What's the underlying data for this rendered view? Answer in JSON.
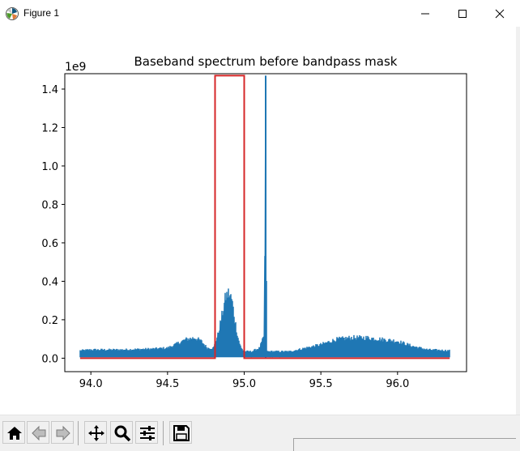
{
  "window": {
    "title": "Figure 1",
    "controls": [
      "minimize",
      "maximize",
      "close"
    ]
  },
  "colors": {
    "spectrum": "#1f77b4",
    "mask": "#d62728",
    "axes": "#000000",
    "toolbar_bg": "#f0f0f0"
  },
  "toolbar": {
    "buttons": [
      "home-icon",
      "back-arrow-icon",
      "forward-arrow-icon",
      "pan-icon",
      "zoom-icon",
      "configure-subplots-icon",
      "save-icon"
    ]
  },
  "chart_data": {
    "type": "line",
    "title": "Baseband spectrum before bandpass mask",
    "xlabel": "",
    "ylabel": "",
    "y_scale_label": "1e9",
    "xlim": [
      93.83,
      96.45
    ],
    "ylim": [
      -0.07,
      1.48
    ],
    "grid": false,
    "x_ticks": [
      94.0,
      94.5,
      95.0,
      95.5,
      96.0
    ],
    "x_tick_labels": [
      "94.0",
      "94.5",
      "95.0",
      "95.5",
      "96.0"
    ],
    "y_ticks": [
      0.0,
      0.2,
      0.4,
      0.6,
      0.8,
      1.0,
      1.2,
      1.4
    ],
    "y_tick_labels": [
      "0.0",
      "0.2",
      "0.4",
      "0.6",
      "0.8",
      "1.0",
      "1.2",
      "1.4"
    ],
    "series": [
      {
        "name": "",
        "color": "#1f77b4",
        "style": "noisy_spectrum",
        "x": [
          93.93,
          94.0,
          94.2,
          94.4,
          94.5,
          94.55,
          94.62,
          94.68,
          94.72,
          94.76,
          94.8,
          94.83,
          94.86,
          94.88,
          94.9,
          94.92,
          94.94,
          94.96,
          94.98,
          95.0,
          95.05,
          95.1,
          95.13,
          95.135,
          95.14,
          95.145,
          95.15,
          95.2,
          95.3,
          95.4,
          95.5,
          95.6,
          95.7,
          95.8,
          95.9,
          96.0,
          96.1,
          96.2,
          96.34
        ],
        "y_low": [
          0.0,
          0.0,
          0.0,
          0.0,
          0.0,
          0.0,
          0.0,
          0.0,
          0.0,
          0.0,
          0.0,
          0.0,
          0.0,
          0.0,
          0.0,
          0.0,
          0.0,
          0.0,
          0.0,
          0.0,
          0.0,
          0.0,
          0.0,
          0.0,
          0.0,
          0.0,
          0.0,
          0.0,
          0.0,
          0.0,
          0.0,
          0.0,
          0.0,
          0.0,
          0.0,
          0.0,
          0.0,
          0.0,
          0.0
        ],
        "y_high": [
          0.045,
          0.05,
          0.05,
          0.055,
          0.06,
          0.08,
          0.11,
          0.12,
          0.1,
          0.06,
          0.06,
          0.14,
          0.27,
          0.36,
          0.38,
          0.34,
          0.22,
          0.12,
          0.06,
          0.04,
          0.04,
          0.06,
          0.13,
          0.6,
          1.47,
          0.5,
          0.04,
          0.04,
          0.04,
          0.06,
          0.08,
          0.11,
          0.12,
          0.12,
          0.11,
          0.1,
          0.07,
          0.05,
          0.045
        ]
      },
      {
        "name": "",
        "color": "#d62728",
        "style": "mask",
        "x": [
          93.93,
          94.81,
          94.81,
          95.0,
          95.0,
          96.34
        ],
        "y": [
          0.0,
          0.0,
          1.47,
          1.47,
          0.0,
          0.0
        ]
      }
    ]
  }
}
